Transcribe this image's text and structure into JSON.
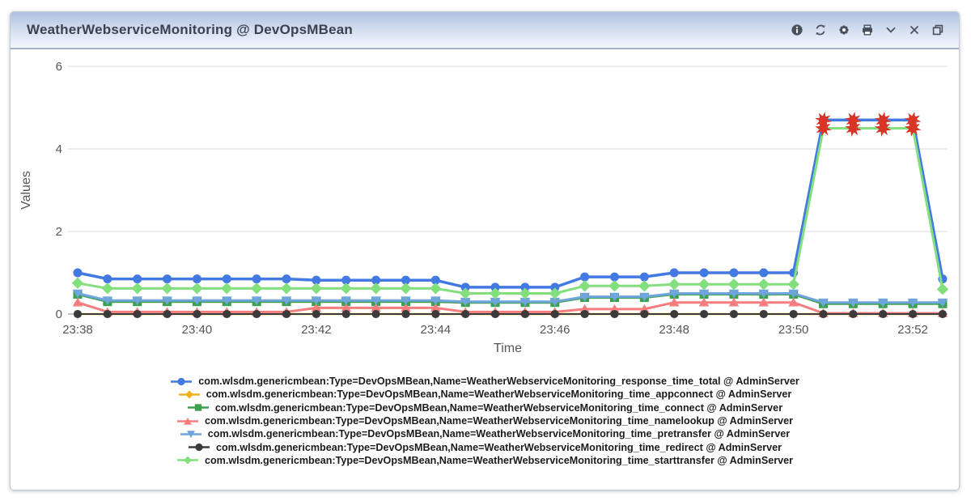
{
  "header": {
    "title": "WeatherWebserviceMonitoring @ DevOpsMBean",
    "toolbar_icons": [
      "info-icon",
      "refresh-icon",
      "settings-icon",
      "print-icon",
      "chevron-down-icon",
      "close-icon",
      "restore-icon"
    ]
  },
  "chart_data": {
    "type": "line",
    "title": "WeatherWebserviceMonitoring @ DevOpsMBean",
    "xlabel": "Time",
    "ylabel": "Values",
    "ylim": [
      0,
      6
    ],
    "yticks": [
      0,
      2,
      4,
      6
    ],
    "grid": "horizontal",
    "legend_position": "bottom",
    "n_points": 30,
    "x_interval_seconds": 30,
    "x_start": "23:38:00",
    "x_end": "23:52:30",
    "xtick_labels": [
      "23:38",
      "23:40",
      "23:42",
      "23:44",
      "23:46",
      "23:48",
      "23:50",
      "23:52"
    ],
    "xtick_indices": [
      0,
      4,
      8,
      12,
      16,
      20,
      24,
      28
    ],
    "series": [
      {
        "key": "response_time_total",
        "name": "com.wlsdm.genericmbean:Type=DevOpsMBean,Name=WeatherWebserviceMonitoring_response_time_total @ AdminServer",
        "color": "#4379e2",
        "marker": "circle",
        "size": 6,
        "lw": 3.5,
        "values": [
          1.0,
          0.85,
          0.85,
          0.85,
          0.85,
          0.85,
          0.85,
          0.85,
          0.82,
          0.82,
          0.82,
          0.82,
          0.82,
          0.65,
          0.65,
          0.65,
          0.65,
          0.9,
          0.9,
          0.9,
          1.0,
          1.0,
          1.0,
          1.0,
          1.0,
          4.7,
          4.7,
          4.7,
          4.7,
          0.85
        ]
      },
      {
        "key": "time_appconnect",
        "name": "com.wlsdm.genericmbean:Type=DevOpsMBean,Name=WeatherWebserviceMonitoring_time_appconnect @ AdminServer",
        "color": "#efb120",
        "marker": "diamond",
        "size": 5,
        "lw": 2.5,
        "values": [
          0,
          0,
          0,
          0,
          0,
          0,
          0,
          0,
          0,
          0,
          0,
          0,
          0,
          0,
          0,
          0,
          0,
          0,
          0,
          0,
          0,
          0,
          0,
          0,
          0,
          0,
          0,
          0,
          0,
          0
        ]
      },
      {
        "key": "time_connect",
        "name": "com.wlsdm.genericmbean:Type=DevOpsMBean,Name=WeatherWebserviceMonitoring_time_connect @ AdminServer",
        "color": "#3ba14f",
        "marker": "square",
        "size": 5.5,
        "lw": 3,
        "values": [
          0.48,
          0.3,
          0.3,
          0.3,
          0.3,
          0.3,
          0.3,
          0.3,
          0.3,
          0.3,
          0.3,
          0.3,
          0.3,
          0.28,
          0.28,
          0.28,
          0.28,
          0.4,
          0.4,
          0.4,
          0.48,
          0.48,
          0.48,
          0.48,
          0.48,
          0.25,
          0.25,
          0.25,
          0.25,
          0.25
        ]
      },
      {
        "key": "time_namelookup",
        "name": "com.wlsdm.genericmbean:Type=DevOpsMBean,Name=WeatherWebserviceMonitoring_time_namelookup @ AdminServer",
        "color": "#f57d7d",
        "marker": "triangle-up",
        "size": 6,
        "lw": 3,
        "values": [
          0.28,
          0.05,
          0.05,
          0.05,
          0.05,
          0.05,
          0.05,
          0.05,
          0.15,
          0.15,
          0.15,
          0.15,
          0.15,
          0.05,
          0.05,
          0.05,
          0.05,
          0.12,
          0.12,
          0.12,
          0.28,
          0.28,
          0.28,
          0.28,
          0.28,
          0.02,
          0.02,
          0.02,
          0.02,
          0.02
        ]
      },
      {
        "key": "time_pretransfer",
        "name": "com.wlsdm.genericmbean:Type=DevOpsMBean,Name=WeatherWebserviceMonitoring_time_pretransfer @ AdminServer",
        "color": "#6fa4dc",
        "marker": "triangle-down",
        "size": 6,
        "lw": 3,
        "values": [
          0.5,
          0.33,
          0.33,
          0.33,
          0.33,
          0.33,
          0.33,
          0.33,
          0.33,
          0.33,
          0.33,
          0.33,
          0.33,
          0.3,
          0.3,
          0.3,
          0.3,
          0.42,
          0.42,
          0.42,
          0.5,
          0.5,
          0.5,
          0.5,
          0.5,
          0.28,
          0.28,
          0.28,
          0.28,
          0.28
        ]
      },
      {
        "key": "time_redirect",
        "name": "com.wlsdm.genericmbean:Type=DevOpsMBean,Name=WeatherWebserviceMonitoring_time_redirect @ AdminServer",
        "color": "#3b3b3b",
        "marker": "circle",
        "size": 5.5,
        "lw": 2,
        "values": [
          0,
          0,
          0,
          0,
          0,
          0,
          0,
          0,
          0,
          0,
          0,
          0,
          0,
          0,
          0,
          0,
          0,
          0,
          0,
          0,
          0,
          0,
          0,
          0,
          0,
          0,
          0,
          0,
          0,
          0
        ]
      },
      {
        "key": "time_starttransfer",
        "name": "com.wlsdm.genericmbean:Type=DevOpsMBean,Name=WeatherWebserviceMonitoring_time_starttransfer @ AdminServer",
        "color": "#83df7d",
        "marker": "diamond",
        "size": 6.5,
        "lw": 3,
        "values": [
          0.75,
          0.62,
          0.62,
          0.62,
          0.62,
          0.62,
          0.62,
          0.62,
          0.62,
          0.62,
          0.62,
          0.62,
          0.62,
          0.5,
          0.5,
          0.5,
          0.5,
          0.68,
          0.68,
          0.68,
          0.72,
          0.72,
          0.72,
          0.72,
          0.72,
          4.5,
          4.5,
          4.5,
          4.5,
          0.6
        ]
      }
    ],
    "alerts": {
      "color": "#d93425",
      "note": "red burst markers on spike points",
      "points": [
        {
          "series_key": "response_time_total",
          "indices": [
            25,
            26,
            27,
            28
          ],
          "value": 4.7
        },
        {
          "series_key": "time_starttransfer",
          "indices": [
            25,
            26,
            27,
            28
          ],
          "value": 4.5
        }
      ]
    }
  },
  "colors": {
    "header_gradient_top": "#aec1e0",
    "header_gradient_bottom": "#f2f6fc",
    "panel_border": "#c2cad4",
    "grid_line": "#d8d8d8",
    "axis_text": "#555555",
    "alert_red": "#d93425"
  }
}
